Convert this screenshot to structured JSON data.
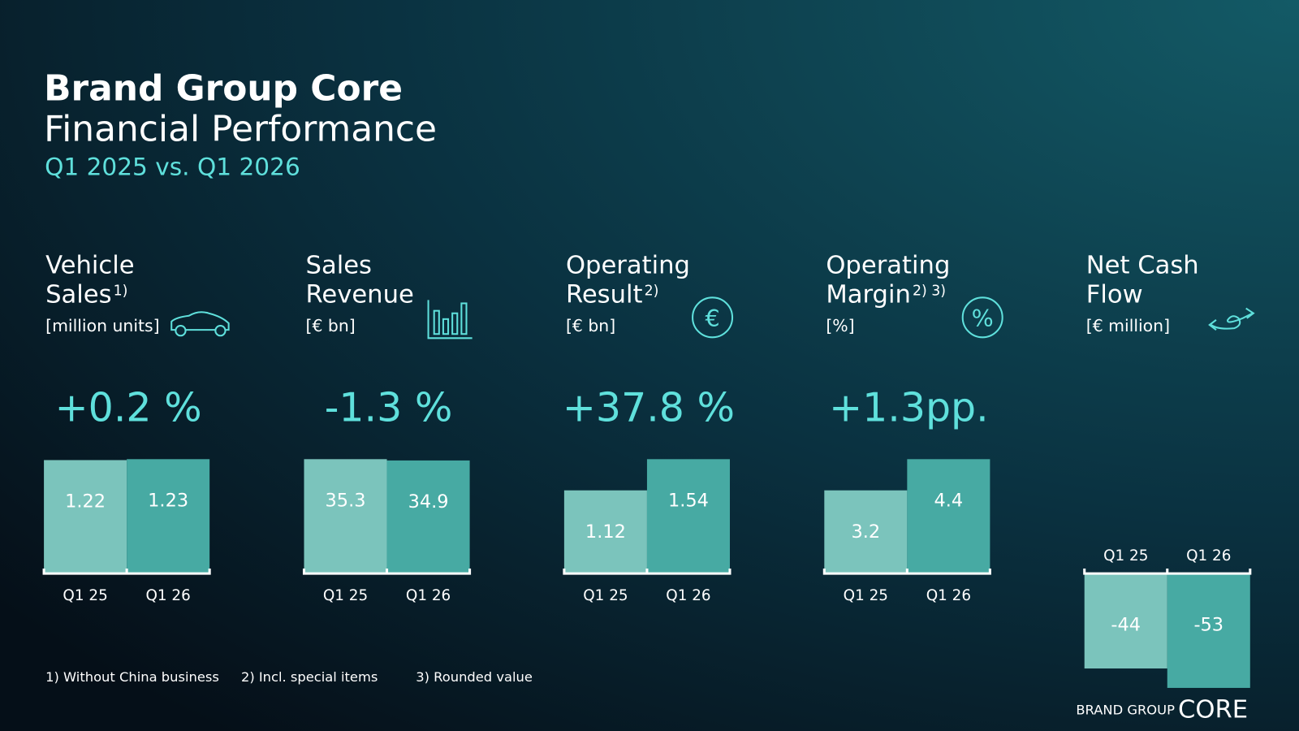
{
  "header": {
    "title": "Brand Group Core",
    "subtitle": "Financial Performance",
    "period": "Q1 2025 vs. Q1 2026"
  },
  "chart_data": [
    {
      "type": "bar",
      "title_lines": [
        "Vehicle",
        "Sales"
      ],
      "note_ref": "1)",
      "unit": "[million units]",
      "change": "+0.2 %",
      "categories": [
        "Q1 25",
        "Q1 26"
      ],
      "values": [
        1.22,
        1.23
      ],
      "colors": [
        "#7bc4bc",
        "#47aaa3"
      ]
    },
    {
      "type": "bar",
      "title_lines": [
        "Sales",
        "Revenue"
      ],
      "unit": "[€ bn]",
      "change": "-1.3 %",
      "categories": [
        "Q1 25",
        "Q1 26"
      ],
      "values": [
        35.3,
        34.9
      ],
      "colors": [
        "#7bc4bc",
        "#47aaa3"
      ]
    },
    {
      "type": "bar",
      "title_lines": [
        "Operating",
        "Result"
      ],
      "note_ref": "2)",
      "unit": "[€ bn]",
      "icon": "€",
      "change": "+37.8 %",
      "categories": [
        "Q1 25",
        "Q1 26"
      ],
      "values": [
        1.12,
        1.54
      ],
      "colors": [
        "#7bc4bc",
        "#47aaa3"
      ]
    },
    {
      "type": "bar",
      "title_lines": [
        "Operating",
        "Margin"
      ],
      "note_ref": "2) 3)",
      "unit": "[%]",
      "icon": "%",
      "change": "+1.3pp.",
      "categories": [
        "Q1 25",
        "Q1 26"
      ],
      "values": [
        3.2,
        4.4
      ],
      "colors": [
        "#7bc4bc",
        "#47aaa3"
      ]
    },
    {
      "type": "bar",
      "title_lines": [
        "Net Cash",
        "Flow"
      ],
      "unit": "[€ million]",
      "categories": [
        "Q1 25",
        "Q1 26"
      ],
      "values": [
        -44,
        -53
      ],
      "colors": [
        "#7bc4bc",
        "#47aaa3"
      ]
    }
  ],
  "footnotes": [
    "1) Without China business",
    "2) Incl. special items",
    "3) Rounded value"
  ],
  "brand": {
    "small": "BRAND GROUP",
    "large": "CORE"
  }
}
